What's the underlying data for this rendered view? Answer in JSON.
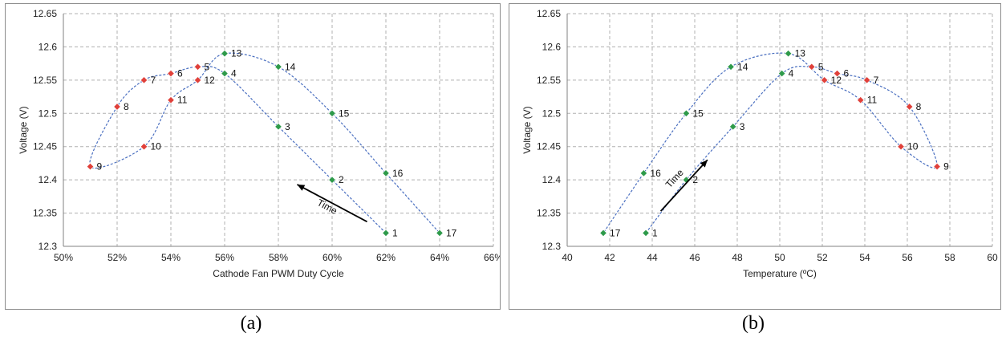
{
  "chart_data": [
    {
      "type": "scatter",
      "xlabel": "Cathode Fan PWM Duty Cycle",
      "ylabel": "Voltage (V)",
      "x_format": "percent",
      "xlim": [
        50,
        66
      ],
      "ylim": [
        12.3,
        12.65
      ],
      "x_ticks": [
        "50%",
        "52%",
        "54%",
        "56%",
        "58%",
        "60%",
        "62%",
        "64%",
        "66%"
      ],
      "y_ticks": [
        "12.3",
        "12.35",
        "12.4",
        "12.45",
        "12.5",
        "12.55",
        "12.6",
        "12.65"
      ],
      "grid": true,
      "annotation": "Time",
      "points": [
        {
          "label": "1",
          "x": 62,
          "y": 12.32,
          "color": "green"
        },
        {
          "label": "2",
          "x": 60,
          "y": 12.4,
          "color": "green"
        },
        {
          "label": "3",
          "x": 58,
          "y": 12.48,
          "color": "green"
        },
        {
          "label": "4",
          "x": 56,
          "y": 12.56,
          "color": "green"
        },
        {
          "label": "5",
          "x": 55,
          "y": 12.57,
          "color": "red"
        },
        {
          "label": "6",
          "x": 54,
          "y": 12.56,
          "color": "red"
        },
        {
          "label": "7",
          "x": 53,
          "y": 12.55,
          "color": "red"
        },
        {
          "label": "8",
          "x": 52,
          "y": 12.51,
          "color": "red"
        },
        {
          "label": "9",
          "x": 51,
          "y": 12.42,
          "color": "red"
        },
        {
          "label": "10",
          "x": 53,
          "y": 12.45,
          "color": "red"
        },
        {
          "label": "11",
          "x": 54,
          "y": 12.52,
          "color": "red"
        },
        {
          "label": "12",
          "x": 55,
          "y": 12.55,
          "color": "red"
        },
        {
          "label": "13",
          "x": 56,
          "y": 12.59,
          "color": "green"
        },
        {
          "label": "14",
          "x": 58,
          "y": 12.57,
          "color": "green"
        },
        {
          "label": "15",
          "x": 60,
          "y": 12.5,
          "color": "green"
        },
        {
          "label": "16",
          "x": 62,
          "y": 12.41,
          "color": "green"
        },
        {
          "label": "17",
          "x": 64,
          "y": 12.32,
          "color": "green"
        }
      ]
    },
    {
      "type": "scatter",
      "xlabel": "Temperature (ºC)",
      "ylabel": "Voltage (V)",
      "x_format": "number",
      "xlim": [
        40,
        60
      ],
      "ylim": [
        12.3,
        12.65
      ],
      "x_ticks": [
        "40",
        "42",
        "44",
        "46",
        "48",
        "50",
        "52",
        "54",
        "56",
        "58",
        "60"
      ],
      "y_ticks": [
        "12.3",
        "12.35",
        "12.4",
        "12.45",
        "12.5",
        "12.55",
        "12.6",
        "12.65"
      ],
      "grid": true,
      "annotation": "Time",
      "points": [
        {
          "label": "1",
          "x": 43.7,
          "y": 12.32,
          "color": "green"
        },
        {
          "label": "2",
          "x": 45.6,
          "y": 12.4,
          "color": "green"
        },
        {
          "label": "3",
          "x": 47.8,
          "y": 12.48,
          "color": "green"
        },
        {
          "label": "4",
          "x": 50.1,
          "y": 12.56,
          "color": "green"
        },
        {
          "label": "5",
          "x": 51.5,
          "y": 12.57,
          "color": "red"
        },
        {
          "label": "6",
          "x": 52.7,
          "y": 12.56,
          "color": "red"
        },
        {
          "label": "7",
          "x": 54.1,
          "y": 12.55,
          "color": "red"
        },
        {
          "label": "8",
          "x": 56.1,
          "y": 12.51,
          "color": "red"
        },
        {
          "label": "9",
          "x": 57.4,
          "y": 12.42,
          "color": "red"
        },
        {
          "label": "10",
          "x": 55.7,
          "y": 12.45,
          "color": "red"
        },
        {
          "label": "11",
          "x": 53.8,
          "y": 12.52,
          "color": "red"
        },
        {
          "label": "12",
          "x": 52.1,
          "y": 12.55,
          "color": "red"
        },
        {
          "label": "13",
          "x": 50.4,
          "y": 12.59,
          "color": "green"
        },
        {
          "label": "14",
          "x": 47.7,
          "y": 12.57,
          "color": "green"
        },
        {
          "label": "15",
          "x": 45.6,
          "y": 12.5,
          "color": "green"
        },
        {
          "label": "16",
          "x": 43.6,
          "y": 12.41,
          "color": "green"
        },
        {
          "label": "17",
          "x": 41.7,
          "y": 12.32,
          "color": "green"
        }
      ]
    }
  ],
  "captions": [
    "(a)",
    "(b)"
  ],
  "colors": {
    "green": "#2e9a4a",
    "red": "#e0403a",
    "curve": "#4a6fc0",
    "grid": "#b0b0b0",
    "arrow": "#000000"
  }
}
